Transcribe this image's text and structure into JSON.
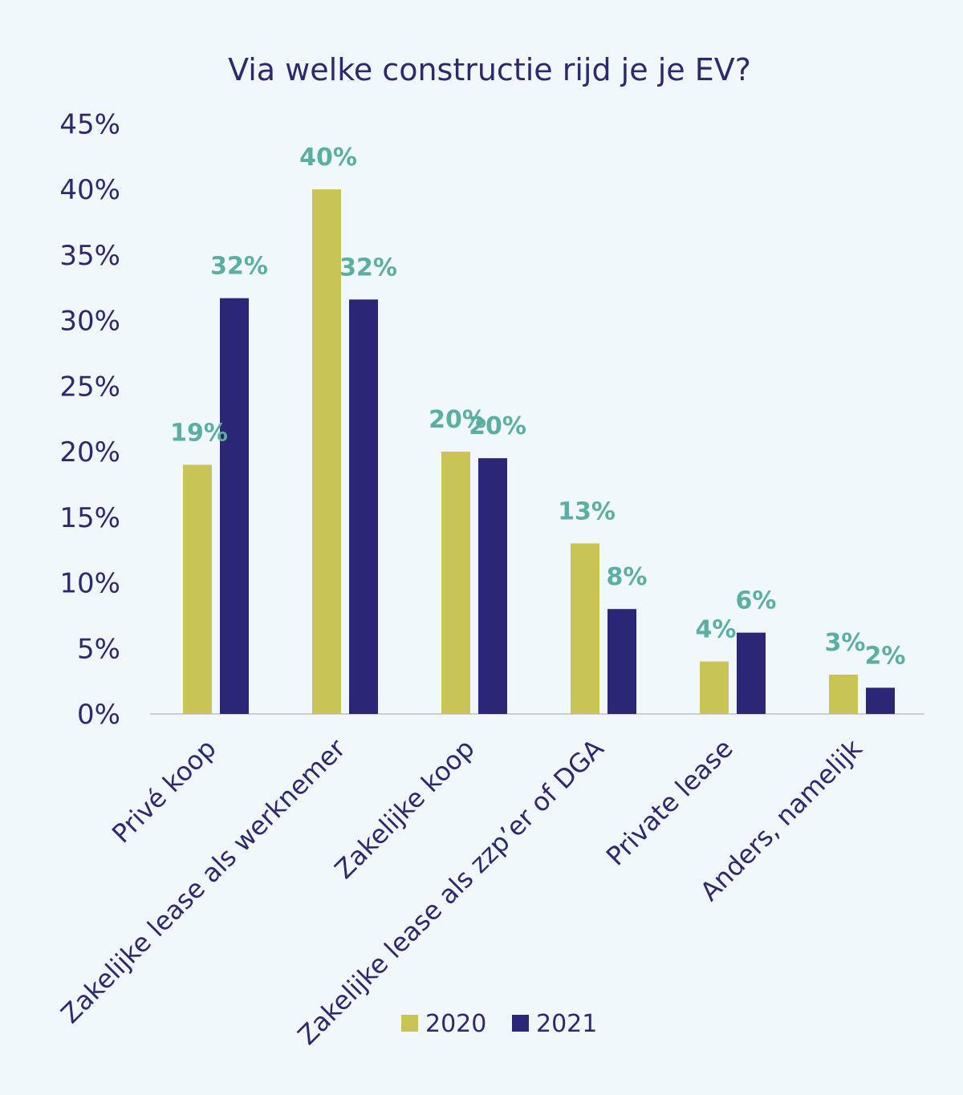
{
  "chart_data": {
    "type": "bar",
    "title": "Via welke constructie rijd je je EV?",
    "categories": [
      "Privé koop",
      "Zakelijke lease als werknemer",
      "Zakelijke koop",
      "Zakelijke lease als zzp’er of DGA",
      "Private lease",
      "Anders, namelijk"
    ],
    "series": [
      {
        "name": "2020",
        "color": "#c8c455",
        "values": [
          19,
          40,
          20,
          13,
          4,
          3
        ],
        "labels": [
          "19%",
          "40%",
          "20%",
          "13%",
          "4%",
          "3%"
        ]
      },
      {
        "name": "2021",
        "color": "#2b2675",
        "values": [
          31.7,
          31.6,
          19.5,
          8,
          6.2,
          2
        ],
        "labels": [
          "32%",
          "32%",
          "20%",
          "8%",
          "6%",
          "2%"
        ]
      }
    ],
    "yticks": [
      "0%",
      "5%",
      "10%",
      "15%",
      "20%",
      "25%",
      "30%",
      "35%",
      "40%",
      "45%"
    ],
    "ylim": [
      0,
      45
    ],
    "grid": false,
    "legend_position": "bottom-center"
  }
}
